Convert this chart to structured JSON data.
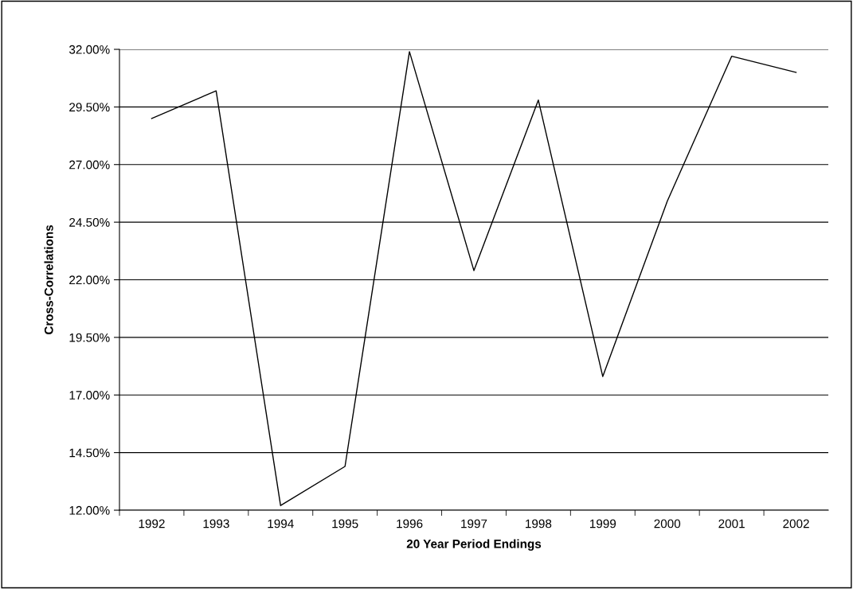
{
  "chart_data": {
    "type": "line",
    "xlabel": "20 Year Period Endings",
    "ylabel": "Cross-Correlations",
    "categories": [
      "1992",
      "1993",
      "1994",
      "1995",
      "1996",
      "1997",
      "1998",
      "1999",
      "2000",
      "2001",
      "2002"
    ],
    "series": [
      {
        "color": "#000000",
        "values": [
          29.0,
          30.2,
          12.2,
          13.9,
          31.9,
          22.4,
          29.8,
          17.8,
          25.4,
          31.7,
          31.0
        ]
      }
    ],
    "ylim": [
      12,
      32
    ],
    "yticks": [
      {
        "value": 12,
        "label": "12.00%"
      },
      {
        "value": 14.5,
        "label": "14.50%"
      },
      {
        "value": 17,
        "label": "17.00%"
      },
      {
        "value": 19.5,
        "label": "19.50%"
      },
      {
        "value": 22,
        "label": "22.00%"
      },
      {
        "value": 24.5,
        "label": "24.50%"
      },
      {
        "value": 27,
        "label": "27.00%"
      },
      {
        "value": 29.5,
        "label": "29.50%"
      },
      {
        "value": 32,
        "label": "32.00%"
      }
    ],
    "grid": "y",
    "marker": "none",
    "line_style": "solid"
  }
}
